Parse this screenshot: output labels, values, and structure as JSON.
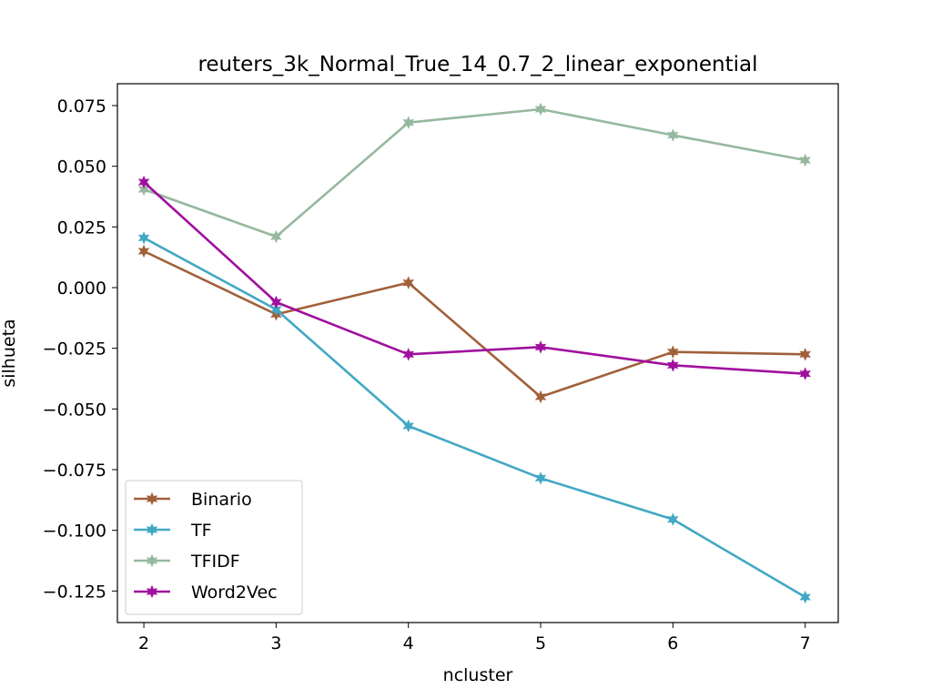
{
  "chart_data": {
    "type": "line",
    "title": "reuters_3k_Normal_True_14_0.7_2_linear_exponential",
    "xlabel": "ncluster",
    "ylabel": "silhueta",
    "x": [
      2,
      3,
      4,
      5,
      6,
      7
    ],
    "xlim": [
      1.8,
      7.25
    ],
    "ylim": [
      -0.138,
      0.084
    ],
    "xticks": [
      2,
      3,
      4,
      5,
      6,
      7
    ],
    "xtick_labels": [
      "2",
      "3",
      "4",
      "5",
      "6",
      "7"
    ],
    "yticks": [
      0.075,
      0.05,
      0.025,
      0.0,
      -0.025,
      -0.05,
      -0.075,
      -0.1,
      -0.125
    ],
    "ytick_labels": [
      "0.075",
      "0.050",
      "0.025",
      "0.000",
      "−0.025",
      "−0.050",
      "−0.075",
      "−0.100",
      "−0.125"
    ],
    "grid": false,
    "legend_position": "lower-left",
    "marker": "star",
    "series": [
      {
        "name": "Binario",
        "color": "#a0603a",
        "values": [
          0.015,
          -0.011,
          0.002,
          -0.045,
          -0.0265,
          -0.0275
        ]
      },
      {
        "name": "TF",
        "color": "#42a8c4",
        "values": [
          0.0205,
          -0.009,
          -0.057,
          -0.0785,
          -0.0955,
          -0.1275
        ]
      },
      {
        "name": "TFIDF",
        "color": "#96b89e",
        "values": [
          0.0405,
          0.021,
          0.068,
          0.0735,
          0.0628,
          0.0525
        ]
      },
      {
        "name": "Word2Vec",
        "color": "#a0109e",
        "values": [
          0.0435,
          -0.006,
          -0.0275,
          -0.0245,
          -0.032,
          -0.0355
        ]
      }
    ]
  }
}
